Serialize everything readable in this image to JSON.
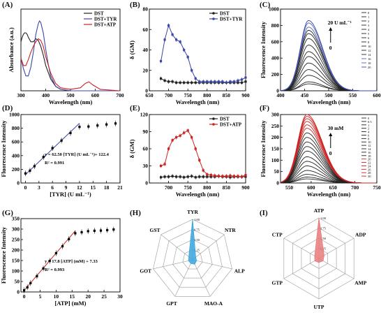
{
  "panel_labels": [
    "(A)",
    "(B)",
    "(C)",
    "(D)",
    "(E)",
    "(F)",
    "(G)",
    "(H)",
    "(I)"
  ],
  "colors": {
    "black": "#222222",
    "blue": "#3b47a8",
    "red": "#cc2222",
    "light_blue": "#3aa6dd",
    "light_red": "#e97b7b"
  },
  "chart_data": [
    {
      "panel": "(A)",
      "type": "line",
      "xlabel": "Wavelength (nm)",
      "ylabel": "Absorbance (a.u.)",
      "xlim": [
        300,
        700
      ],
      "xticks": [
        300,
        400,
        500,
        600,
        700
      ],
      "ylim": [
        0,
        0.55
      ],
      "legend": [
        "DST",
        "DST+TYR",
        "DST+ATP"
      ],
      "legend_position": "top-right",
      "series": [
        {
          "name": "DST",
          "color": "#222222",
          "x": [
            300,
            305,
            310,
            315,
            320,
            325,
            330,
            340,
            350,
            360,
            370,
            380,
            390,
            400,
            420,
            440,
            460,
            500,
            550,
            600,
            650,
            700
          ],
          "y": [
            0.33,
            0.36,
            0.38,
            0.39,
            0.39,
            0.38,
            0.36,
            0.33,
            0.33,
            0.35,
            0.34,
            0.3,
            0.24,
            0.17,
            0.08,
            0.03,
            0.01,
            0,
            0,
            0,
            0,
            0
          ]
        },
        {
          "name": "DST+TYR",
          "color": "#3b47a8",
          "x": [
            300,
            310,
            320,
            330,
            340,
            350,
            360,
            370,
            375,
            380,
            390,
            400,
            410,
            420,
            440,
            460,
            500,
            550,
            600,
            700
          ],
          "y": [
            0.22,
            0.15,
            0.1,
            0.1,
            0.16,
            0.26,
            0.38,
            0.45,
            0.47,
            0.46,
            0.39,
            0.28,
            0.18,
            0.1,
            0.03,
            0.01,
            0,
            0,
            0,
            0
          ]
        },
        {
          "name": "DST+ATP",
          "color": "#cc2222",
          "x": [
            300,
            310,
            320,
            330,
            340,
            350,
            360,
            370,
            380,
            390,
            400,
            420,
            440,
            460,
            500,
            540,
            560,
            575,
            590,
            620,
            700
          ],
          "y": [
            0.22,
            0.17,
            0.17,
            0.21,
            0.26,
            0.3,
            0.33,
            0.35,
            0.34,
            0.3,
            0.23,
            0.12,
            0.05,
            0.02,
            0.01,
            0.02,
            0.05,
            0.06,
            0.04,
            0.01,
            0
          ]
        }
      ]
    },
    {
      "panel": "(B)",
      "type": "line",
      "xlabel": "Wavelength (nm)",
      "ylabel": "δ (GM)",
      "xlim": [
        650,
        900
      ],
      "xticks": [
        650,
        700,
        750,
        800,
        850,
        900
      ],
      "ylim": [
        0,
        80
      ],
      "yticks": [
        0,
        20,
        40,
        60,
        80
      ],
      "legend": [
        "DST",
        "DST+TYR"
      ],
      "legend_position": "top-right",
      "series": [
        {
          "name": "DST",
          "color": "#222222",
          "x": [
            680,
            690,
            700,
            710,
            720,
            730,
            740,
            750,
            760,
            770,
            780,
            790,
            800,
            810,
            820,
            830,
            840,
            850,
            860,
            870,
            880,
            890,
            900
          ],
          "y": [
            12,
            10,
            9,
            9,
            8,
            8,
            8,
            8,
            8,
            8,
            8,
            8,
            8,
            8,
            8,
            8,
            8,
            8,
            8,
            8,
            8,
            8,
            9
          ]
        },
        {
          "name": "DST+TYR",
          "color": "#3b47a8",
          "x": [
            680,
            690,
            700,
            710,
            720,
            730,
            740,
            750,
            760,
            770,
            780,
            790,
            800,
            810,
            820,
            830,
            840,
            850,
            860,
            870,
            880,
            890,
            900
          ],
          "y": [
            29,
            50,
            64,
            55,
            50,
            48,
            40,
            33,
            20,
            12,
            9,
            9,
            9,
            9,
            9,
            9,
            9,
            8,
            9,
            9,
            10,
            11,
            13
          ]
        }
      ]
    },
    {
      "panel": "(C)",
      "type": "line",
      "xlabel": "Wavelength (nm)",
      "ylabel": "Fluorescence Intensity",
      "xlim": [
        400,
        600
      ],
      "xticks": [
        400,
        450,
        500,
        550,
        600
      ],
      "ylim": [
        0,
        1000
      ],
      "yticks": [
        0,
        200,
        400,
        600,
        800,
        1000
      ],
      "annotation": "20 U mL⁻¹",
      "annotation_bottom": "0",
      "legend": [
        "0",
        "1",
        "2",
        "3",
        "4",
        "5",
        "6",
        "8",
        "10",
        "12",
        "14",
        "16",
        "18",
        "20"
      ],
      "legend_position": "top-right",
      "peak_wavelength": 458,
      "peaks": [
        85,
        110,
        190,
        260,
        340,
        420,
        480,
        560,
        640,
        700,
        740,
        780,
        830,
        860
      ]
    },
    {
      "panel": "(D)",
      "type": "scatter",
      "xlabel": "[TYR] (U mL⁻¹)",
      "ylabel": "Fluorescence Intensity",
      "xlim": [
        -1,
        21
      ],
      "xticks": [
        0,
        3,
        6,
        9,
        12,
        15,
        18,
        21
      ],
      "ylim": [
        0,
        1000
      ],
      "yticks": [
        0,
        200,
        400,
        600,
        800,
        1000
      ],
      "equation": "y = 62.50 [TYR] (U mL⁻¹)+ 122.4",
      "r2": "R² = 0.991",
      "fit": {
        "x": [
          0,
          12
        ],
        "y": [
          122.4,
          872.4
        ]
      },
      "series": [
        {
          "x": [
            0,
            1,
            2,
            4,
            6,
            8,
            10,
            12,
            14,
            16,
            18,
            20
          ],
          "y": [
            140,
            180,
            245,
            380,
            510,
            620,
            730,
            820,
            825,
            840,
            855,
            870
          ]
        }
      ]
    },
    {
      "panel": "(E)",
      "type": "line",
      "xlabel": "Wavelength (nm)",
      "ylabel": "δ (GM)",
      "xlim": [
        650,
        900
      ],
      "xticks": [
        700,
        750,
        800,
        850,
        900
      ],
      "ylim": [
        0,
        120
      ],
      "yticks": [
        0,
        30,
        60,
        90,
        120
      ],
      "legend": [
        "DST",
        "DST+ATP"
      ],
      "legend_position": "top-right",
      "series": [
        {
          "name": "DST",
          "color": "#222222",
          "x": [
            680,
            690,
            700,
            710,
            720,
            730,
            740,
            750,
            760,
            770,
            780,
            790,
            800,
            810,
            820,
            830,
            840,
            850,
            860,
            870,
            880,
            890,
            900
          ],
          "y": [
            10,
            11,
            11,
            12,
            11,
            11,
            10,
            11,
            12,
            10,
            11,
            11,
            11,
            11,
            11,
            12,
            11,
            11,
            10,
            11,
            11,
            11,
            11
          ]
        },
        {
          "name": "DST+ATP",
          "color": "#cc2222",
          "x": [
            680,
            690,
            700,
            710,
            720,
            730,
            740,
            750,
            760,
            770,
            780,
            790,
            800,
            810,
            820,
            830,
            840,
            850,
            860,
            870,
            880,
            890,
            900
          ],
          "y": [
            30,
            33,
            60,
            75,
            80,
            83,
            88,
            92,
            80,
            60,
            40,
            22,
            15,
            14,
            13,
            12,
            12,
            12,
            13,
            12,
            12,
            11,
            14
          ]
        }
      ]
    },
    {
      "panel": "(F)",
      "type": "line",
      "xlabel": "Wavelength (nm)",
      "ylabel": "Fluorescence Intensity",
      "xlim": [
        530,
        750
      ],
      "xticks": [
        550,
        600,
        650,
        700,
        750
      ],
      "ylim": [
        0,
        300
      ],
      "yticks": [
        0,
        50,
        100,
        150,
        200,
        250,
        300
      ],
      "annotation": "30 mM",
      "annotation_bottom": "0",
      "legend": [
        "0",
        "0.5",
        "1",
        "2",
        "4",
        "6",
        "8",
        "10",
        "12",
        "14",
        "16",
        "18",
        "20",
        "22",
        "24",
        "26",
        "28",
        "30"
      ],
      "legend_position": "top-right",
      "peak_wavelength": 590,
      "peaks": [
        18,
        26,
        38,
        55,
        75,
        95,
        115,
        140,
        160,
        180,
        200,
        220,
        240,
        255,
        270,
        282,
        292,
        300
      ]
    },
    {
      "panel": "(G)",
      "type": "scatter",
      "xlabel": "[ATP] (mM)",
      "ylabel": "Fluorescence Intensity",
      "xlim": [
        -1,
        30
      ],
      "xticks": [
        0,
        5,
        10,
        15,
        20,
        25,
        30
      ],
      "ylim": [
        0,
        350
      ],
      "yticks": [
        0,
        50,
        100,
        150,
        200,
        250,
        300,
        350
      ],
      "equation": "y = 17.8 [ATP] (mM) + 7.33",
      "r2": "R² = 0.993",
      "fit": {
        "x": [
          0,
          16
        ],
        "y": [
          7.33,
          292.1
        ]
      },
      "series": [
        {
          "x": [
            0,
            1,
            2,
            4,
            6,
            8,
            10,
            12,
            14,
            16,
            18,
            20,
            22,
            24,
            26,
            28
          ],
          "y": [
            8,
            22,
            42,
            75,
            112,
            148,
            185,
            218,
            252,
            280,
            285,
            290,
            292,
            293,
            295,
            298
          ]
        }
      ]
    },
    {
      "panel": "(H)",
      "type": "radar",
      "axes": [
        "TYR",
        "NTR",
        "ALP",
        "MAO-A",
        "GPT",
        "GOT",
        "GST"
      ],
      "rticks": [
        "0.25",
        "0.50",
        "0.75",
        "1.00"
      ],
      "values": [
        1.0,
        0.1,
        0.1,
        0.12,
        0.1,
        0.1,
        0.12
      ],
      "color": "#3aa6dd"
    },
    {
      "panel": "(I)",
      "type": "radar",
      "axes": [
        "ATP",
        "ADP",
        "AMP",
        "UTP",
        "GTP",
        "CTP"
      ],
      "rticks": [
        "0.25",
        "0.50",
        "0.75",
        "1.00"
      ],
      "values": [
        1.0,
        0.15,
        0.12,
        0.1,
        0.12,
        0.12
      ],
      "color": "#e97b7b"
    }
  ]
}
